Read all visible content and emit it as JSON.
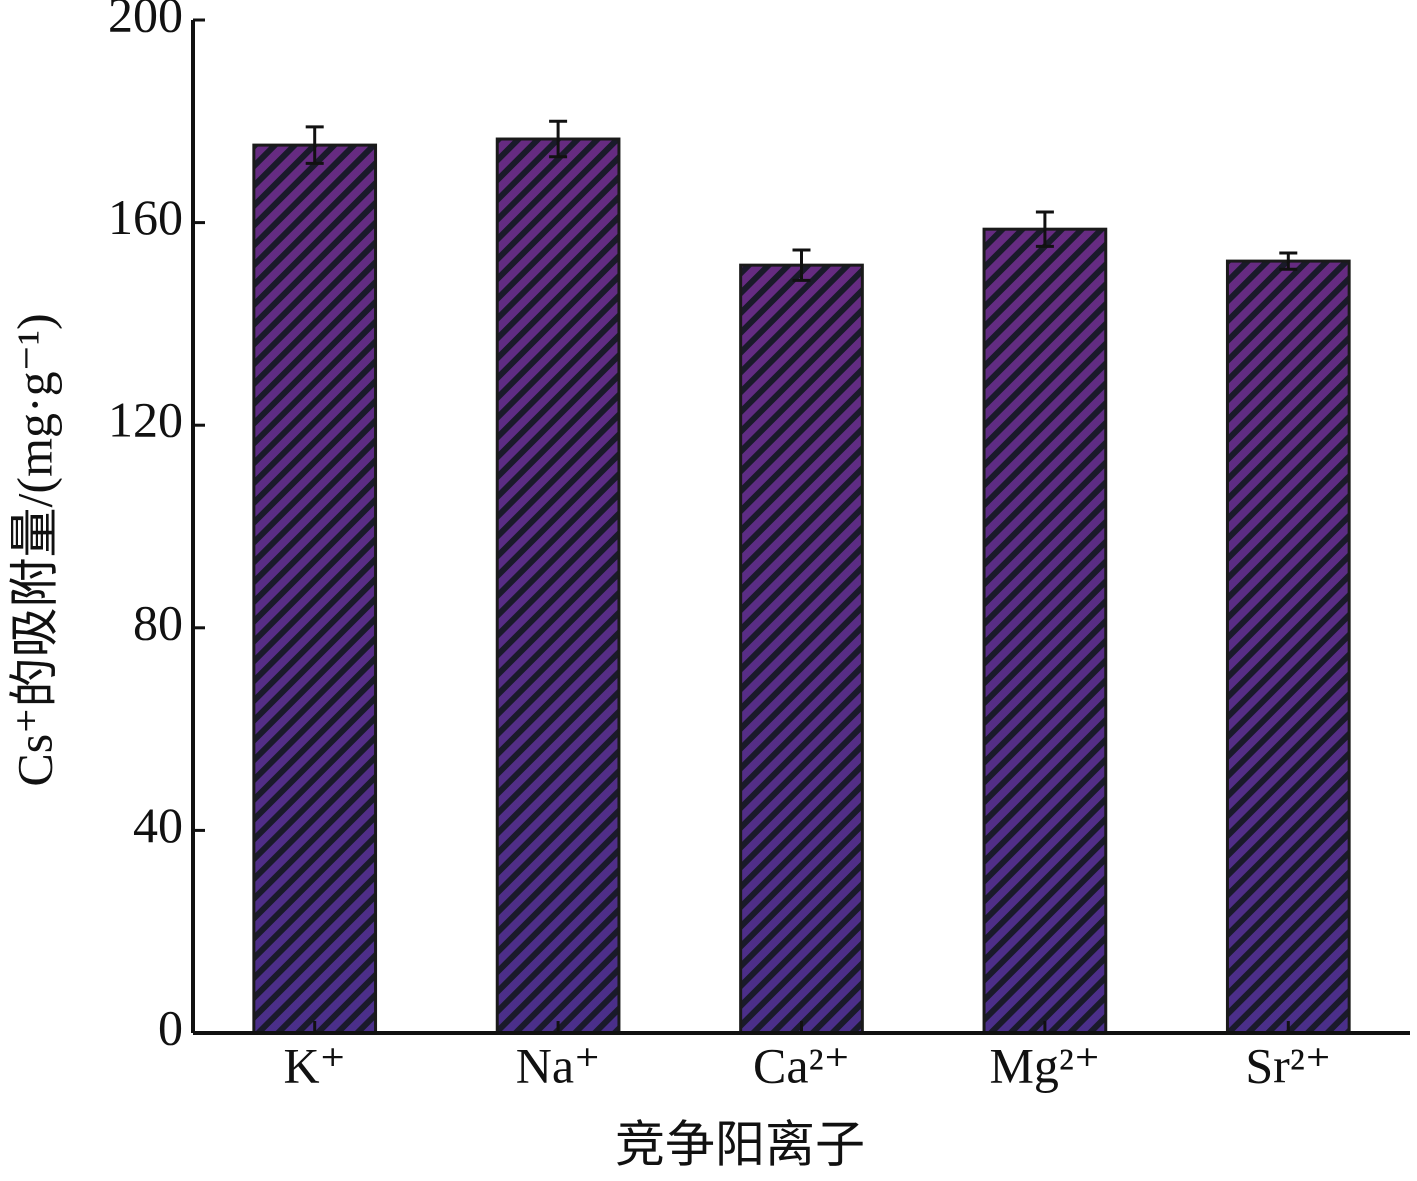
{
  "chart_data": {
    "type": "bar",
    "categories": [
      "K⁺",
      "Na⁺",
      "Ca²⁺",
      "Mg²⁺",
      "Sr²⁺"
    ],
    "values": [
      175.3,
      176.5,
      151.6,
      158.7,
      152.4
    ],
    "errors": [
      3.6,
      3.5,
      3.0,
      3.4,
      1.6
    ],
    "color": "#5a2d86",
    "y_label": "Cs⁺的吸附量/(mg·g⁻¹)",
    "x_label": "竞争阳离子",
    "ylim": [
      0,
      200
    ],
    "yticks": [
      0,
      40,
      80,
      120,
      160,
      200
    ]
  }
}
